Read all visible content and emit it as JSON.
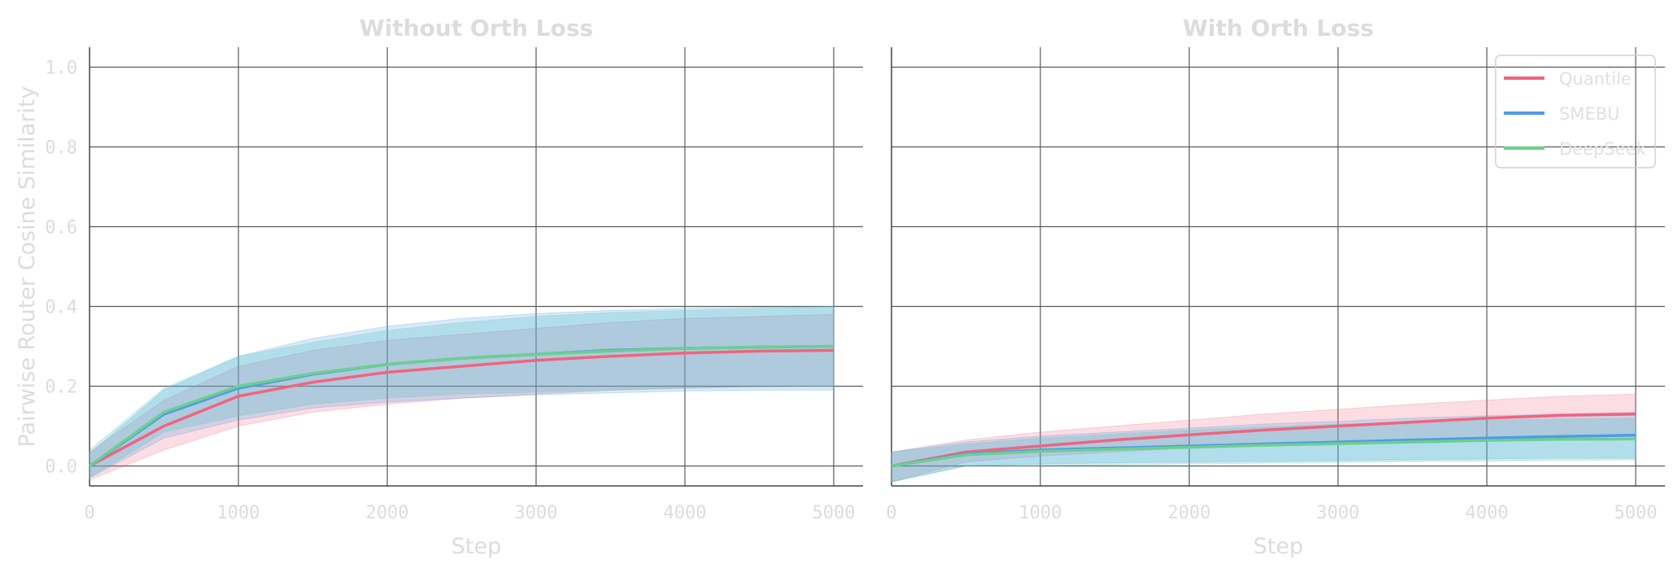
{
  "chart_data": [
    {
      "type": "line",
      "title": "Without Orth Loss",
      "xlabel": "Step",
      "ylabel": "Pairwise Router Cosine Similarity",
      "xlim": [
        0,
        5000
      ],
      "ylim": [
        -0.05,
        1.05
      ],
      "xticks": [
        "0",
        "1000",
        "2000",
        "3000",
        "4000",
        "5000"
      ],
      "yticks": [
        "0.0",
        "0.2",
        "0.4",
        "0.6",
        "0.8",
        "1.0"
      ],
      "grid": true,
      "x": [
        0,
        500,
        1000,
        1500,
        2000,
        2500,
        3000,
        3500,
        4000,
        4500,
        5000
      ],
      "series": [
        {
          "name": "Quantile",
          "color": "#f0647f",
          "values": [
            0.0,
            0.1,
            0.175,
            0.21,
            0.235,
            0.25,
            0.265,
            0.275,
            0.283,
            0.288,
            0.29
          ],
          "lower": [
            -0.035,
            0.04,
            0.1,
            0.135,
            0.155,
            0.17,
            0.18,
            0.19,
            0.195,
            0.2,
            0.2
          ],
          "upper": [
            0.035,
            0.165,
            0.25,
            0.29,
            0.315,
            0.33,
            0.345,
            0.36,
            0.37,
            0.375,
            0.38
          ]
        },
        {
          "name": "SMEBU",
          "color": "#4c9be8",
          "values": [
            0.0,
            0.13,
            0.195,
            0.23,
            0.255,
            0.27,
            0.28,
            0.29,
            0.295,
            0.298,
            0.3
          ],
          "lower": [
            -0.03,
            0.07,
            0.115,
            0.145,
            0.16,
            0.17,
            0.178,
            0.183,
            0.188,
            0.19,
            0.19
          ],
          "upper": [
            0.03,
            0.19,
            0.275,
            0.32,
            0.35,
            0.37,
            0.382,
            0.39,
            0.395,
            0.398,
            0.4
          ]
        },
        {
          "name": "DeepSeek",
          "color": "#6ccf8f",
          "values": [
            0.0,
            0.135,
            0.2,
            0.232,
            0.255,
            0.27,
            0.28,
            0.288,
            0.295,
            0.298,
            0.3
          ],
          "lower": [
            -0.03,
            0.085,
            0.125,
            0.155,
            0.17,
            0.18,
            0.185,
            0.19,
            0.195,
            0.198,
            0.2
          ],
          "upper": [
            0.04,
            0.195,
            0.275,
            0.31,
            0.34,
            0.36,
            0.375,
            0.385,
            0.39,
            0.395,
            0.4
          ]
        }
      ]
    },
    {
      "type": "line",
      "title": "With Orth Loss",
      "xlabel": "Step",
      "ylabel": "",
      "xlim": [
        0,
        5000
      ],
      "ylim": [
        -0.05,
        1.05
      ],
      "xticks": [
        "0",
        "1000",
        "2000",
        "3000",
        "4000",
        "5000"
      ],
      "yticks": [],
      "grid": true,
      "legend": "top-right",
      "x": [
        0,
        500,
        1000,
        1500,
        2000,
        2500,
        3000,
        3500,
        4000,
        4500,
        5000
      ],
      "series": [
        {
          "name": "Quantile",
          "color": "#f0647f",
          "values": [
            0.0,
            0.035,
            0.05,
            0.065,
            0.078,
            0.09,
            0.1,
            0.11,
            0.12,
            0.127,
            0.13
          ],
          "lower": [
            -0.04,
            0.01,
            0.025,
            0.035,
            0.045,
            0.055,
            0.06,
            0.065,
            0.07,
            0.075,
            0.08
          ],
          "upper": [
            0.035,
            0.065,
            0.085,
            0.1,
            0.115,
            0.13,
            0.142,
            0.155,
            0.165,
            0.175,
            0.18
          ]
        },
        {
          "name": "SMEBU",
          "color": "#4c9be8",
          "values": [
            0.0,
            0.03,
            0.04,
            0.045,
            0.05,
            0.055,
            0.06,
            0.065,
            0.07,
            0.074,
            0.077
          ],
          "lower": [
            -0.04,
            0.0,
            0.005,
            0.008,
            0.01,
            0.012,
            0.014,
            0.016,
            0.018,
            0.02,
            0.02
          ],
          "upper": [
            0.035,
            0.06,
            0.075,
            0.085,
            0.095,
            0.105,
            0.112,
            0.12,
            0.126,
            0.13,
            0.135
          ]
        },
        {
          "name": "DeepSeek",
          "color": "#6ccf8f",
          "values": [
            0.0,
            0.028,
            0.037,
            0.042,
            0.047,
            0.052,
            0.056,
            0.06,
            0.064,
            0.067,
            0.068
          ],
          "lower": [
            -0.04,
            0.0,
            0.0,
            0.003,
            0.005,
            0.007,
            0.009,
            0.011,
            0.012,
            0.014,
            0.015
          ],
          "upper": [
            0.035,
            0.055,
            0.07,
            0.08,
            0.09,
            0.098,
            0.105,
            0.11,
            0.115,
            0.118,
            0.12
          ]
        }
      ]
    }
  ]
}
